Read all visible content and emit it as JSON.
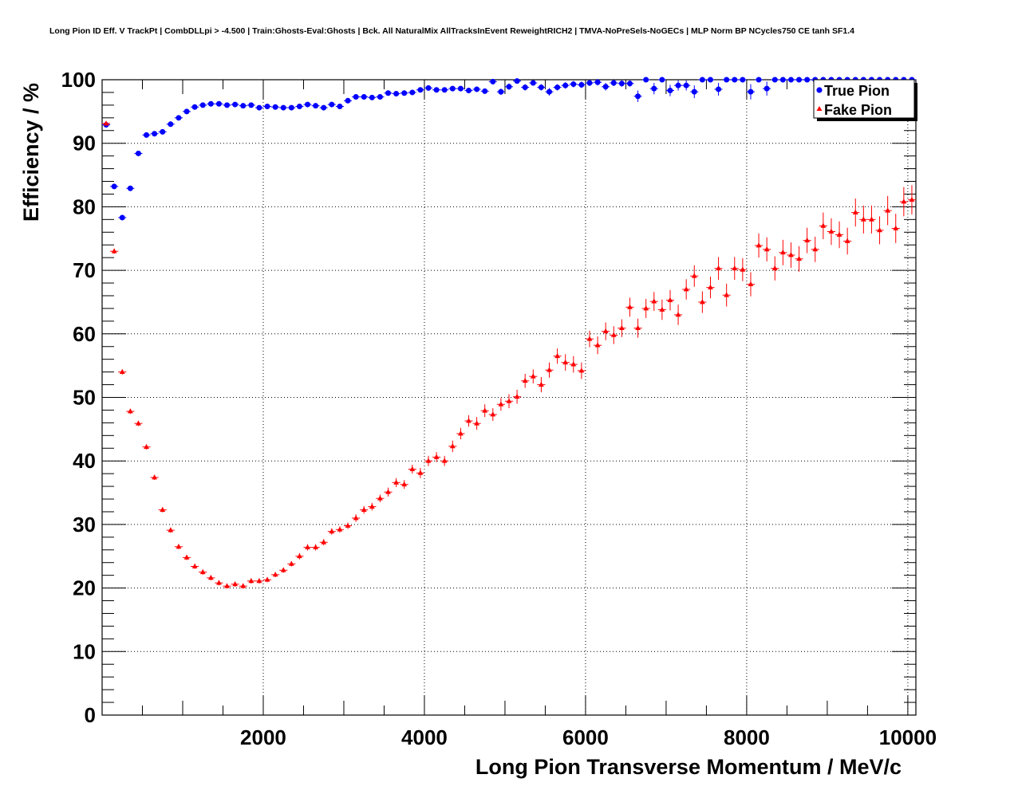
{
  "title": "Long Pion ID Eff. V TrackPt | CombDLLpi > -4.500 | Train:Ghosts-Eval:Ghosts | Bck. All NaturalMix AllTracksInEvent ReweightRICH2 | TMVA-NoPreSels-NoGECs | MLP Norm BP NCycles750 CE tanh SF1.4",
  "colors": {
    "true_pion": "#0000ff",
    "fake_pion": "#ff0000",
    "frame": "#000000",
    "grid": "#000000"
  },
  "chart_data": {
    "type": "scatter",
    "title": "Long Pion ID Eff. V TrackPt | CombDLLpi > -4.500 | Train:Ghosts-Eval:Ghosts | Bck. All NaturalMix AllTracksInEvent ReweightRICH2 | TMVA-NoPreSels-NoGECs | MLP Norm BP NCycles750 CE tanh SF1.4",
    "xlabel": "Long Pion Transverse Momentum / MeV/c",
    "ylabel": "Efficiency / %",
    "xlim": [
      0,
      10100
    ],
    "ylim": [
      0,
      100
    ],
    "grid": true,
    "legend_position": "top-right",
    "x_ticks": [
      "2000",
      "4000",
      "6000",
      "8000",
      "10000"
    ],
    "y_ticks": [
      "0",
      "10",
      "20",
      "30",
      "40",
      "50",
      "60",
      "70",
      "80",
      "90",
      "100"
    ],
    "x": [
      50,
      150,
      250,
      350,
      450,
      550,
      650,
      750,
      850,
      950,
      1050,
      1150,
      1250,
      1350,
      1450,
      1550,
      1650,
      1750,
      1850,
      1950,
      2050,
      2150,
      2250,
      2350,
      2450,
      2550,
      2650,
      2750,
      2850,
      2950,
      3050,
      3150,
      3250,
      3350,
      3450,
      3550,
      3650,
      3750,
      3850,
      3950,
      4050,
      4150,
      4250,
      4350,
      4450,
      4550,
      4650,
      4750,
      4850,
      4950,
      5050,
      5150,
      5250,
      5350,
      5450,
      5550,
      5650,
      5750,
      5850,
      5950,
      6050,
      6150,
      6250,
      6350,
      6450,
      6550,
      6650,
      6750,
      6850,
      6950,
      7050,
      7150,
      7250,
      7350,
      7450,
      7550,
      7650,
      7750,
      7850,
      7950,
      8050,
      8150,
      8250,
      8350,
      8450,
      8550,
      8650,
      8750,
      8850,
      8950,
      9050,
      9150,
      9250,
      9350,
      9450,
      9550,
      9650,
      9750,
      9850,
      9950,
      10050
    ],
    "series": [
      {
        "name": "True Pion",
        "marker": "circle",
        "color": "#0000ff",
        "values": [
          92.9,
          83.2,
          78.3,
          82.9,
          88.4,
          91.3,
          91.5,
          91.8,
          93.0,
          94.0,
          95.0,
          95.7,
          96.0,
          96.2,
          96.2,
          96.0,
          96.1,
          95.9,
          96.0,
          95.6,
          95.8,
          95.7,
          95.6,
          95.6,
          95.8,
          96.1,
          95.9,
          95.6,
          96.1,
          95.8,
          96.7,
          97.3,
          97.3,
          97.2,
          97.3,
          97.9,
          97.8,
          97.9,
          98.0,
          98.4,
          98.7,
          98.4,
          98.4,
          98.6,
          98.6,
          98.3,
          98.5,
          98.2,
          99.7,
          98.1,
          98.9,
          99.8,
          98.8,
          99.5,
          98.8,
          98.1,
          98.8,
          99.1,
          99.3,
          99.2,
          99.5,
          99.6,
          98.9,
          99.5,
          99.4,
          99.4,
          97.4,
          100.0,
          98.6,
          100.0,
          98.3,
          99.1,
          99.1,
          98.1,
          100.0,
          100.0,
          98.5,
          100.0,
          100.0,
          100.0,
          98.1,
          100.0,
          98.6,
          100.0,
          100.0,
          100.0,
          100.0,
          100.0,
          100.0,
          100.0,
          100.0,
          100.0,
          100.0,
          100.0,
          100.0,
          100.0,
          100.0,
          100.0,
          100.0,
          100.0,
          100.0
        ],
        "errors": [
          0.3,
          0.4,
          0.4,
          0.3,
          0.3,
          0.3,
          0.3,
          0.3,
          0.3,
          0.3,
          0.3,
          0.3,
          0.3,
          0.3,
          0.3,
          0.3,
          0.3,
          0.3,
          0.3,
          0.3,
          0.3,
          0.3,
          0.3,
          0.3,
          0.3,
          0.3,
          0.3,
          0.3,
          0.3,
          0.3,
          0.3,
          0.3,
          0.3,
          0.3,
          0.3,
          0.3,
          0.3,
          0.3,
          0.3,
          0.4,
          0.4,
          0.4,
          0.4,
          0.4,
          0.4,
          0.4,
          0.4,
          0.4,
          0.4,
          0.5,
          0.5,
          0.4,
          0.5,
          0.4,
          0.5,
          0.6,
          0.5,
          0.5,
          0.5,
          0.5,
          0.5,
          0.5,
          0.6,
          0.5,
          0.5,
          0.5,
          0.9,
          0.3,
          0.9,
          0.3,
          0.9,
          0.8,
          0.8,
          1.0,
          0.3,
          0.3,
          1.0,
          0.3,
          0.3,
          0.3,
          1.2,
          0.3,
          1.1,
          0.3,
          0.3,
          0.3,
          0.3,
          0.3,
          0.3,
          0.3,
          0.3,
          0.3,
          0.3,
          0.3,
          0.3,
          0.3,
          0.3,
          0.3,
          0.3,
          0.3,
          0.3
        ]
      },
      {
        "name": "Fake Pion",
        "marker": "triangle",
        "color": "#ff0000",
        "values": [
          93.1,
          73.0,
          54.0,
          47.8,
          45.9,
          42.2,
          37.4,
          32.3,
          29.1,
          26.5,
          24.8,
          23.4,
          22.5,
          21.6,
          20.8,
          20.3,
          20.6,
          20.3,
          21.1,
          21.1,
          21.3,
          22.1,
          22.8,
          23.8,
          25.0,
          26.4,
          26.4,
          27.2,
          28.9,
          29.2,
          29.8,
          31.0,
          32.3,
          32.8,
          34.1,
          35.1,
          36.6,
          36.3,
          38.7,
          38.1,
          40.0,
          40.6,
          40.0,
          42.3,
          44.3,
          46.3,
          45.9,
          47.9,
          47.3,
          48.9,
          49.4,
          50.1,
          52.6,
          53.3,
          52.0,
          54.3,
          56.5,
          55.5,
          55.2,
          54.2,
          59.2,
          58.2,
          60.4,
          59.8,
          60.9,
          64.2,
          60.9,
          64.0,
          65.1,
          63.8,
          65.3,
          63.0,
          67.0,
          69.1,
          65.0,
          67.3,
          70.3,
          66.1,
          70.3,
          70.1,
          67.8,
          73.9,
          73.3,
          70.3,
          72.8,
          72.4,
          71.8,
          74.7,
          73.3,
          77.0,
          76.1,
          75.6,
          74.6,
          79.1,
          78.0,
          78.0,
          76.3,
          79.4,
          76.6,
          80.8,
          81.1
        ],
        "errors": [
          0.3,
          0.4,
          0.4,
          0.4,
          0.4,
          0.4,
          0.4,
          0.4,
          0.4,
          0.4,
          0.4,
          0.4,
          0.4,
          0.4,
          0.4,
          0.4,
          0.4,
          0.4,
          0.4,
          0.4,
          0.4,
          0.4,
          0.4,
          0.4,
          0.5,
          0.5,
          0.5,
          0.5,
          0.5,
          0.5,
          0.5,
          0.6,
          0.6,
          0.6,
          0.6,
          0.7,
          0.7,
          0.7,
          0.7,
          0.8,
          0.8,
          0.8,
          0.8,
          0.9,
          0.9,
          0.9,
          1.0,
          1.0,
          1.0,
          1.0,
          1.1,
          1.1,
          1.1,
          1.1,
          1.2,
          1.2,
          1.2,
          1.3,
          1.3,
          1.3,
          1.3,
          1.4,
          1.4,
          1.4,
          1.4,
          1.5,
          1.5,
          1.5,
          1.5,
          1.6,
          1.6,
          1.6,
          1.6,
          1.7,
          1.7,
          1.7,
          1.8,
          1.8,
          1.8,
          1.8,
          1.9,
          1.9,
          1.9,
          1.9,
          2.0,
          2.0,
          2.0,
          2.0,
          2.0,
          2.1,
          2.1,
          2.1,
          2.1,
          2.2,
          2.2,
          2.2,
          2.2,
          2.3,
          2.3,
          2.3,
          2.3
        ]
      }
    ]
  }
}
